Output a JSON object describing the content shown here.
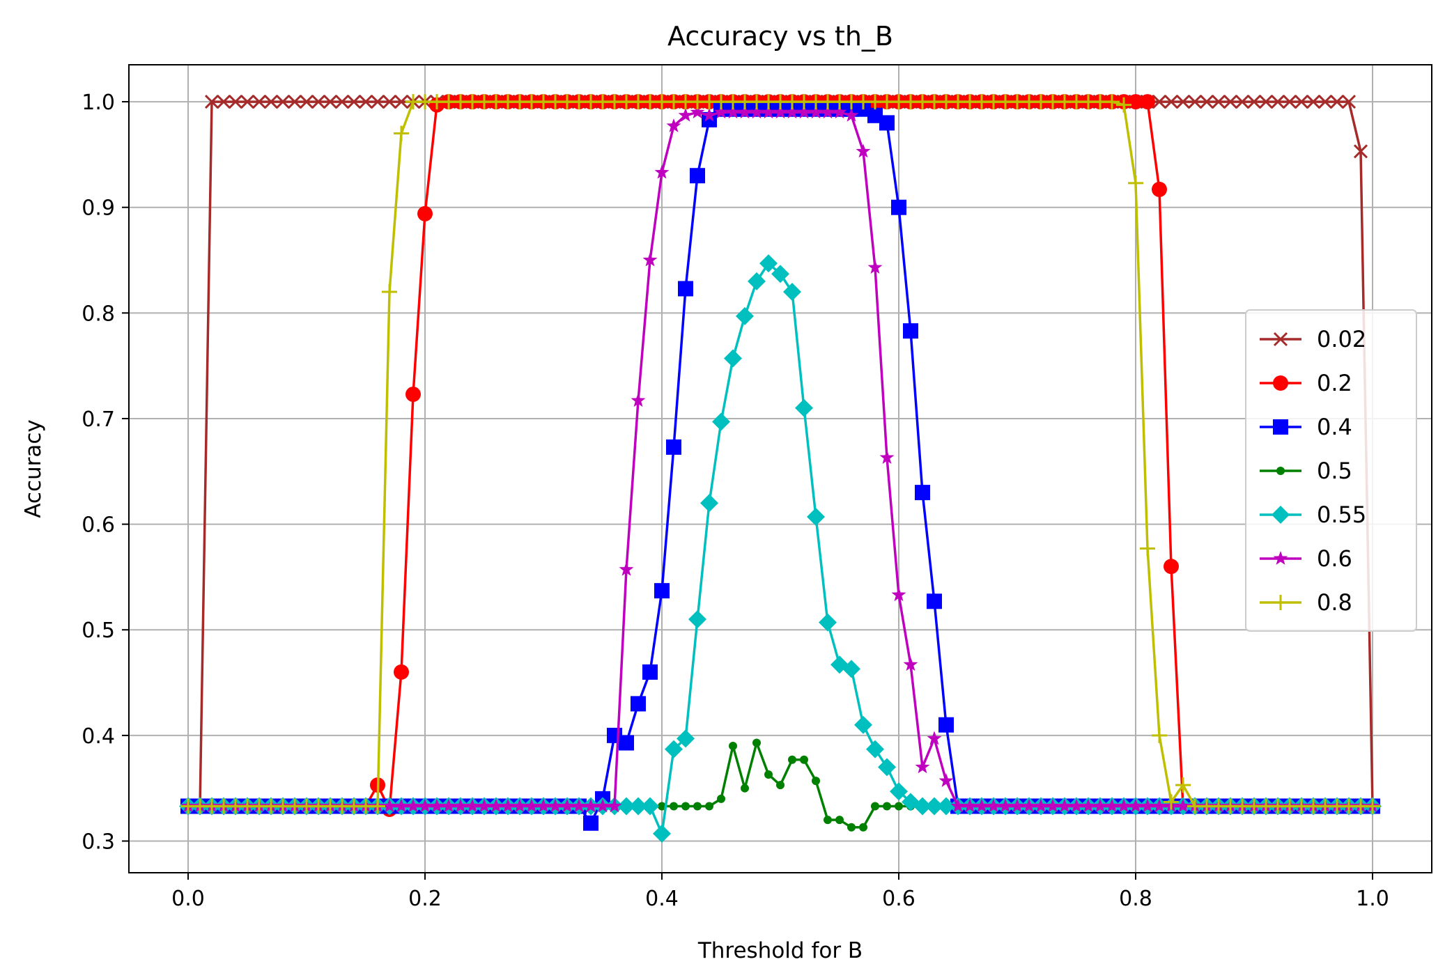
{
  "chart_data": {
    "type": "line",
    "title": "Accuracy vs th_B",
    "xlabel": "Threshold for B",
    "ylabel": "Accuracy",
    "xlim": [
      -0.05,
      1.05
    ],
    "ylim": [
      0.27,
      1.035
    ],
    "xticks": [
      0.0,
      0.2,
      0.4,
      0.6,
      0.8,
      1.0
    ],
    "xtick_labels": [
      "0.0",
      "0.2",
      "0.4",
      "0.6",
      "0.8",
      "1.0"
    ],
    "yticks": [
      0.3,
      0.4,
      0.5,
      0.6,
      0.7,
      0.8,
      0.9,
      1.0
    ],
    "ytick_labels": [
      "0.3",
      "0.4",
      "0.5",
      "0.6",
      "0.7",
      "0.8",
      "0.9",
      "1.0"
    ],
    "grid": true,
    "legend_position": "center-right",
    "x": [
      0.0,
      0.01,
      0.02,
      0.03,
      0.04,
      0.05,
      0.06,
      0.07,
      0.08,
      0.09,
      0.1,
      0.11,
      0.12,
      0.13,
      0.14,
      0.15,
      0.16,
      0.17,
      0.18,
      0.19,
      0.2,
      0.21,
      0.22,
      0.23,
      0.24,
      0.25,
      0.26,
      0.27,
      0.28,
      0.29,
      0.3,
      0.31,
      0.32,
      0.33,
      0.34,
      0.35,
      0.36,
      0.37,
      0.38,
      0.39,
      0.4,
      0.41,
      0.42,
      0.43,
      0.44,
      0.45,
      0.46,
      0.47,
      0.48,
      0.49,
      0.5,
      0.51,
      0.52,
      0.53,
      0.54,
      0.55,
      0.56,
      0.57,
      0.58,
      0.59,
      0.6,
      0.61,
      0.62,
      0.63,
      0.64,
      0.65,
      0.66,
      0.67,
      0.68,
      0.69,
      0.7,
      0.71,
      0.72,
      0.73,
      0.74,
      0.75,
      0.76,
      0.77,
      0.78,
      0.79,
      0.8,
      0.81,
      0.82,
      0.83,
      0.84,
      0.85,
      0.86,
      0.87,
      0.88,
      0.89,
      0.9,
      0.91,
      0.92,
      0.93,
      0.94,
      0.95,
      0.96,
      0.97,
      0.98,
      0.99,
      1.0
    ],
    "series": [
      {
        "name": "0.02",
        "color": "#a52a2a",
        "marker": "x",
        "values": [
          0.333,
          0.333,
          1.0,
          1.0,
          1.0,
          1.0,
          1.0,
          1.0,
          1.0,
          1.0,
          1.0,
          1.0,
          1.0,
          1.0,
          1.0,
          1.0,
          1.0,
          1.0,
          1.0,
          1.0,
          1.0,
          1.0,
          1.0,
          1.0,
          1.0,
          1.0,
          1.0,
          1.0,
          1.0,
          1.0,
          1.0,
          1.0,
          1.0,
          1.0,
          1.0,
          1.0,
          1.0,
          1.0,
          1.0,
          1.0,
          1.0,
          1.0,
          1.0,
          1.0,
          1.0,
          1.0,
          1.0,
          1.0,
          1.0,
          1.0,
          1.0,
          1.0,
          1.0,
          1.0,
          1.0,
          1.0,
          1.0,
          1.0,
          1.0,
          1.0,
          1.0,
          1.0,
          1.0,
          1.0,
          1.0,
          1.0,
          1.0,
          1.0,
          1.0,
          1.0,
          1.0,
          1.0,
          1.0,
          1.0,
          1.0,
          1.0,
          1.0,
          1.0,
          1.0,
          1.0,
          1.0,
          1.0,
          1.0,
          1.0,
          1.0,
          1.0,
          1.0,
          1.0,
          1.0,
          1.0,
          1.0,
          1.0,
          1.0,
          1.0,
          1.0,
          1.0,
          1.0,
          1.0,
          1.0,
          0.953,
          0.333
        ]
      },
      {
        "name": "0.2",
        "color": "#ff0000",
        "marker": "o",
        "values": [
          0.333,
          0.333,
          0.333,
          0.333,
          0.333,
          0.333,
          0.333,
          0.333,
          0.333,
          0.333,
          0.333,
          0.333,
          0.333,
          0.333,
          0.333,
          0.333,
          0.353,
          0.33,
          0.46,
          0.723,
          0.894,
          0.997,
          1.0,
          1.0,
          1.0,
          1.0,
          1.0,
          1.0,
          1.0,
          1.0,
          1.0,
          1.0,
          1.0,
          1.0,
          1.0,
          1.0,
          1.0,
          1.0,
          1.0,
          1.0,
          1.0,
          1.0,
          1.0,
          1.0,
          1.0,
          1.0,
          1.0,
          1.0,
          1.0,
          1.0,
          1.0,
          1.0,
          1.0,
          1.0,
          1.0,
          1.0,
          1.0,
          1.0,
          1.0,
          1.0,
          1.0,
          1.0,
          1.0,
          1.0,
          1.0,
          1.0,
          1.0,
          1.0,
          1.0,
          1.0,
          1.0,
          1.0,
          1.0,
          1.0,
          1.0,
          1.0,
          1.0,
          1.0,
          1.0,
          1.0,
          1.0,
          1.0,
          0.917,
          0.56,
          0.333,
          0.333,
          0.333,
          0.333,
          0.333,
          0.333,
          0.333,
          0.333,
          0.333,
          0.333,
          0.333,
          0.333,
          0.333,
          0.333,
          0.333,
          0.333,
          0.333
        ]
      },
      {
        "name": "0.4",
        "color": "#0000ff",
        "marker": "s",
        "values": [
          0.333,
          0.333,
          0.333,
          0.333,
          0.333,
          0.333,
          0.333,
          0.333,
          0.333,
          0.333,
          0.333,
          0.333,
          0.333,
          0.333,
          0.333,
          0.333,
          0.333,
          0.333,
          0.333,
          0.333,
          0.333,
          0.333,
          0.333,
          0.333,
          0.333,
          0.333,
          0.333,
          0.333,
          0.333,
          0.333,
          0.333,
          0.333,
          0.333,
          0.333,
          0.317,
          0.34,
          0.4,
          0.393,
          0.43,
          0.46,
          0.537,
          0.673,
          0.823,
          0.93,
          0.983,
          0.993,
          0.993,
          0.993,
          0.993,
          0.993,
          0.993,
          0.993,
          0.993,
          0.993,
          0.993,
          0.993,
          0.993,
          0.993,
          0.987,
          0.98,
          0.9,
          0.783,
          0.63,
          0.527,
          0.41,
          0.333,
          0.333,
          0.333,
          0.333,
          0.333,
          0.333,
          0.333,
          0.333,
          0.333,
          0.333,
          0.333,
          0.333,
          0.333,
          0.333,
          0.333,
          0.333,
          0.333,
          0.333,
          0.333,
          0.333,
          0.333,
          0.333,
          0.333,
          0.333,
          0.333,
          0.333,
          0.333,
          0.333,
          0.333,
          0.333,
          0.333,
          0.333,
          0.333,
          0.333,
          0.333,
          0.333
        ]
      },
      {
        "name": "0.5",
        "color": "#008000",
        "marker": "dot",
        "values": [
          0.333,
          0.333,
          0.333,
          0.333,
          0.333,
          0.333,
          0.333,
          0.333,
          0.333,
          0.333,
          0.333,
          0.333,
          0.333,
          0.333,
          0.333,
          0.333,
          0.333,
          0.333,
          0.333,
          0.333,
          0.333,
          0.333,
          0.333,
          0.333,
          0.333,
          0.333,
          0.333,
          0.333,
          0.333,
          0.333,
          0.333,
          0.333,
          0.333,
          0.333,
          0.333,
          0.333,
          0.333,
          0.333,
          0.333,
          0.333,
          0.333,
          0.333,
          0.333,
          0.333,
          0.333,
          0.34,
          0.39,
          0.35,
          0.393,
          0.363,
          0.353,
          0.377,
          0.377,
          0.357,
          0.32,
          0.32,
          0.313,
          0.313,
          0.333,
          0.333,
          0.333,
          0.333,
          0.333,
          0.333,
          0.333,
          0.333,
          0.333,
          0.333,
          0.333,
          0.333,
          0.333,
          0.333,
          0.333,
          0.333,
          0.333,
          0.333,
          0.333,
          0.333,
          0.333,
          0.333,
          0.333,
          0.333,
          0.333,
          0.333,
          0.333,
          0.333,
          0.333,
          0.333,
          0.333,
          0.333,
          0.333,
          0.333,
          0.333,
          0.333,
          0.333,
          0.333,
          0.333,
          0.333,
          0.333,
          0.333,
          0.333
        ]
      },
      {
        "name": "0.55",
        "color": "#00bfbf",
        "marker": "D",
        "values": [
          0.333,
          0.333,
          0.333,
          0.333,
          0.333,
          0.333,
          0.333,
          0.333,
          0.333,
          0.333,
          0.333,
          0.333,
          0.333,
          0.333,
          0.333,
          0.333,
          0.333,
          0.333,
          0.333,
          0.333,
          0.333,
          0.333,
          0.333,
          0.333,
          0.333,
          0.333,
          0.333,
          0.333,
          0.333,
          0.333,
          0.333,
          0.333,
          0.333,
          0.333,
          0.333,
          0.333,
          0.333,
          0.333,
          0.333,
          0.333,
          0.307,
          0.387,
          0.397,
          0.51,
          0.62,
          0.697,
          0.757,
          0.797,
          0.83,
          0.847,
          0.837,
          0.82,
          0.71,
          0.607,
          0.507,
          0.467,
          0.463,
          0.41,
          0.387,
          0.37,
          0.347,
          0.337,
          0.333,
          0.333,
          0.333,
          0.333,
          0.333,
          0.333,
          0.333,
          0.333,
          0.333,
          0.333,
          0.333,
          0.333,
          0.333,
          0.333,
          0.333,
          0.333,
          0.333,
          0.333,
          0.333,
          0.333,
          0.333,
          0.333,
          0.333,
          0.333,
          0.333,
          0.333,
          0.333,
          0.333,
          0.333,
          0.333,
          0.333,
          0.333,
          0.333,
          0.333,
          0.333,
          0.333,
          0.333,
          0.333,
          0.333
        ]
      },
      {
        "name": "0.6",
        "color": "#bf00bf",
        "marker": "*",
        "values": [
          0.333,
          0.333,
          0.333,
          0.333,
          0.333,
          0.333,
          0.333,
          0.333,
          0.333,
          0.333,
          0.333,
          0.333,
          0.333,
          0.333,
          0.333,
          0.333,
          0.333,
          0.333,
          0.333,
          0.333,
          0.333,
          0.333,
          0.333,
          0.333,
          0.333,
          0.333,
          0.333,
          0.333,
          0.333,
          0.333,
          0.333,
          0.333,
          0.333,
          0.333,
          0.333,
          0.333,
          0.333,
          0.557,
          0.717,
          0.85,
          0.933,
          0.977,
          0.987,
          0.99,
          0.987,
          0.99,
          0.99,
          0.99,
          0.99,
          0.99,
          0.99,
          0.99,
          0.99,
          0.99,
          0.99,
          0.99,
          0.987,
          0.953,
          0.843,
          0.663,
          0.533,
          0.467,
          0.37,
          0.397,
          0.357,
          0.333,
          0.333,
          0.333,
          0.333,
          0.333,
          0.333,
          0.333,
          0.333,
          0.333,
          0.333,
          0.333,
          0.333,
          0.333,
          0.333,
          0.333,
          0.333,
          0.333,
          0.333,
          0.333,
          0.333,
          0.333,
          0.333,
          0.333,
          0.333,
          0.333,
          0.333,
          0.333,
          0.333,
          0.333,
          0.333,
          0.333,
          0.333,
          0.333,
          0.333,
          0.333,
          0.333
        ]
      },
      {
        "name": "0.8",
        "color": "#bfbf00",
        "marker": "+",
        "values": [
          0.333,
          0.333,
          0.333,
          0.333,
          0.333,
          0.333,
          0.333,
          0.333,
          0.333,
          0.333,
          0.333,
          0.333,
          0.333,
          0.333,
          0.333,
          0.333,
          0.333,
          0.82,
          0.97,
          1.0,
          1.0,
          1.0,
          1.0,
          1.0,
          1.0,
          1.0,
          1.0,
          1.0,
          1.0,
          1.0,
          1.0,
          1.0,
          1.0,
          1.0,
          1.0,
          1.0,
          1.0,
          1.0,
          1.0,
          1.0,
          1.0,
          1.0,
          1.0,
          1.0,
          1.0,
          1.0,
          1.0,
          1.0,
          1.0,
          1.0,
          1.0,
          1.0,
          1.0,
          1.0,
          1.0,
          1.0,
          1.0,
          1.0,
          1.0,
          1.0,
          1.0,
          1.0,
          1.0,
          1.0,
          1.0,
          1.0,
          1.0,
          1.0,
          1.0,
          1.0,
          1.0,
          1.0,
          1.0,
          1.0,
          1.0,
          1.0,
          1.0,
          1.0,
          1.0,
          0.997,
          0.923,
          0.577,
          0.4,
          0.337,
          0.353,
          0.333,
          0.333,
          0.333,
          0.333,
          0.333,
          0.333,
          0.333,
          0.333,
          0.333,
          0.333,
          0.333,
          0.333,
          0.333,
          0.333,
          0.333,
          0.333
        ]
      }
    ]
  }
}
